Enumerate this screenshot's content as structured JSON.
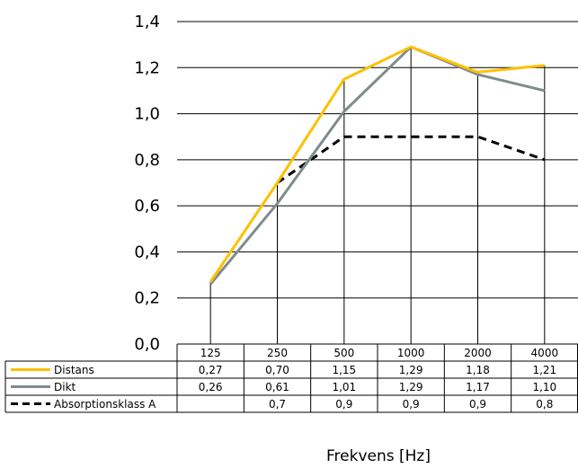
{
  "chart_data": {
    "type": "line",
    "categories": [
      "125",
      "250",
      "500",
      "1000",
      "2000",
      "4000"
    ],
    "xlabel": "Frekvens [Hz]",
    "ylabel": "",
    "ylim": [
      0,
      1.4
    ],
    "yticks": [
      "0,0",
      "0,2",
      "0,4",
      "0,6",
      "0,8",
      "1,0",
      "1,2",
      "1,4"
    ],
    "grid": "horizontal and vertical",
    "series": [
      {
        "name": "Distans",
        "color": "#FFC000",
        "style": "solid",
        "values": [
          0.27,
          0.7,
          1.15,
          1.29,
          1.18,
          1.21
        ],
        "labels": [
          "0,27",
          "0,70",
          "1,15",
          "1,29",
          "1,18",
          "1,21"
        ]
      },
      {
        "name": "Dikt",
        "color": "#7F8C8D",
        "style": "solid",
        "values": [
          0.26,
          0.61,
          1.01,
          1.29,
          1.17,
          1.1
        ],
        "labels": [
          "0,26",
          "0,61",
          "1,01",
          "1,29",
          "1,17",
          "1,10"
        ]
      },
      {
        "name": "Absorptionsklass A",
        "color": "#000000",
        "style": "dashed",
        "values": [
          null,
          0.7,
          0.9,
          0.9,
          0.9,
          0.8
        ],
        "labels": [
          "",
          "0,7",
          "0,9",
          "0,9",
          "0,9",
          "0,8"
        ]
      }
    ]
  }
}
